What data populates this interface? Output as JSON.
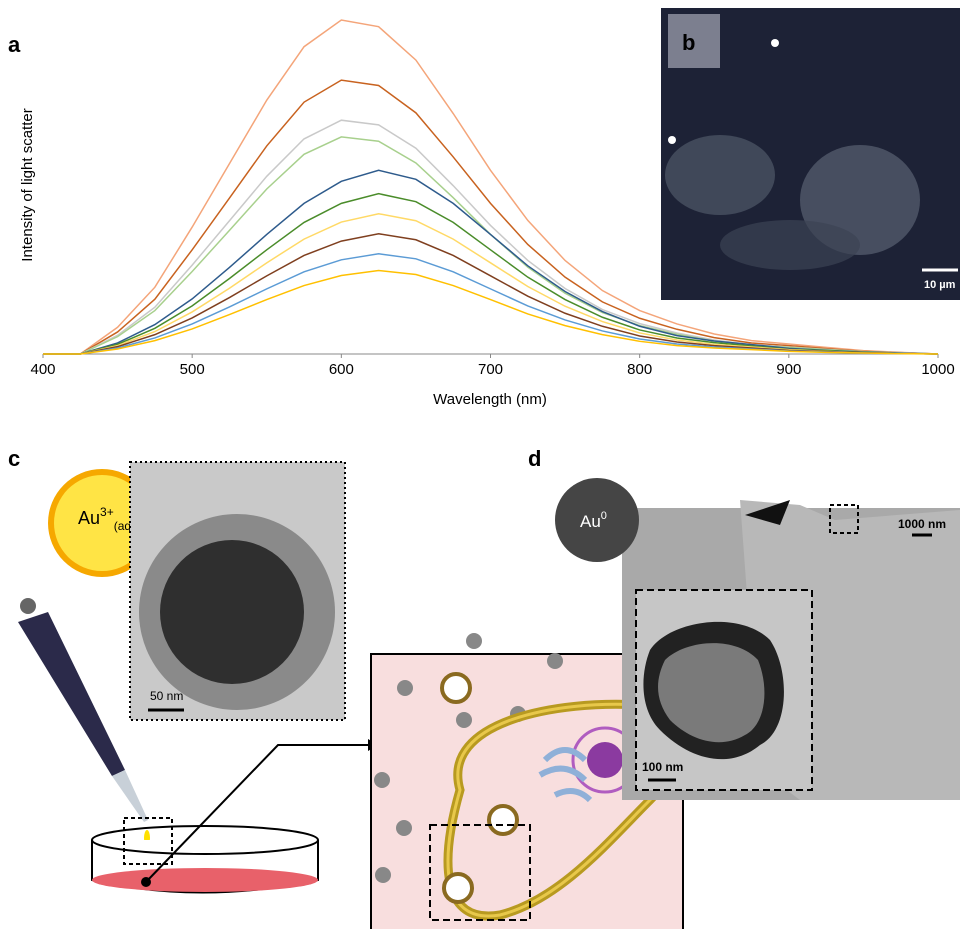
{
  "chart_data": {
    "type": "line",
    "xlabel": "Wavelength (nm)",
    "ylabel": "Intensity of light scatter",
    "x": [
      400,
      425,
      450,
      475,
      500,
      525,
      550,
      575,
      600,
      625,
      650,
      675,
      700,
      725,
      750,
      775,
      800,
      825,
      850,
      875,
      900,
      925,
      950,
      975,
      1000
    ],
    "xlim": [
      400,
      1000
    ],
    "xticks": [
      400,
      500,
      600,
      700,
      800,
      900,
      1000
    ],
    "ylim": [
      0,
      100
    ],
    "series": [
      {
        "color": "#f4a57a",
        "values": [
          0,
          0,
          8,
          20,
          38,
          57,
          76,
          92,
          100,
          98,
          88,
          72,
          55,
          40,
          28,
          19,
          13,
          9,
          6,
          4,
          3,
          2,
          1,
          0.5,
          0
        ]
      },
      {
        "color": "#c8621f",
        "values": [
          0,
          0,
          6.6,
          16.4,
          31.2,
          46.7,
          62.3,
          75.4,
          82,
          80.4,
          72.2,
          59,
          45.1,
          32.8,
          23,
          15.6,
          10.7,
          7.4,
          4.9,
          3.3,
          2.5,
          1.6,
          0.8,
          0.4,
          0
        ]
      },
      {
        "color": "#c9c9c9",
        "values": [
          0,
          0,
          5.6,
          14,
          26.6,
          39.9,
          53.2,
          64.4,
          70,
          68.6,
          61.6,
          50.4,
          38.5,
          28,
          19.6,
          13.3,
          9.1,
          6.3,
          4.2,
          2.8,
          2.1,
          1.4,
          0.7,
          0.4,
          0
        ]
      },
      {
        "color": "#a8d08d",
        "values": [
          0,
          0,
          5.2,
          13,
          24.7,
          37,
          49.4,
          59.8,
          65,
          63.7,
          57.2,
          46.8,
          35.8,
          26,
          18.2,
          12.4,
          8.5,
          5.9,
          3.9,
          2.6,
          2,
          1.3,
          0.7,
          0.3,
          0
        ]
      },
      {
        "color": "#2e5b8c",
        "values": [
          0,
          0,
          3.3,
          8.8,
          16.5,
          25.9,
          35.8,
          45.1,
          51.7,
          55,
          52.3,
          45.1,
          35.8,
          26.4,
          18.7,
          12.7,
          8.3,
          5.5,
          3.9,
          2.8,
          1.7,
          1.1,
          0.6,
          0.3,
          0
        ]
      },
      {
        "color": "#4a8c2a",
        "values": [
          0,
          0,
          2.9,
          7.7,
          14.4,
          22.6,
          31.2,
          39.4,
          45.1,
          48,
          45.6,
          39.4,
          31.2,
          23,
          16.3,
          11,
          7.2,
          4.8,
          3.4,
          2.4,
          1.4,
          1,
          0.5,
          0.2,
          0
        ]
      },
      {
        "color": "#ffd966",
        "values": [
          0,
          0,
          2.5,
          6.7,
          12.6,
          19.7,
          27.3,
          34.4,
          39.5,
          42,
          39.9,
          34.4,
          27.3,
          20.2,
          14.3,
          9.7,
          6.3,
          4.2,
          2.9,
          2.1,
          1.3,
          0.8,
          0.4,
          0.2,
          0
        ]
      },
      {
        "color": "#7f3f1f",
        "values": [
          0,
          0,
          2.2,
          5.8,
          10.8,
          16.9,
          23.4,
          29.5,
          33.8,
          36,
          34.2,
          29.5,
          23.4,
          17.3,
          12.2,
          8.3,
          5.4,
          3.6,
          2.5,
          1.8,
          1.1,
          0.7,
          0.4,
          0.2,
          0
        ]
      },
      {
        "color": "#5b9bd5",
        "values": [
          0,
          0,
          1.8,
          4.8,
          9,
          14.1,
          19.5,
          24.6,
          28.2,
          30,
          28.5,
          24.6,
          19.5,
          14.4,
          10.2,
          6.9,
          4.5,
          3,
          2.1,
          1.5,
          0.9,
          0.6,
          0.3,
          0.2,
          0
        ]
      },
      {
        "color": "#ffc000",
        "values": [
          0,
          0,
          1.5,
          4,
          7.5,
          11.8,
          16.3,
          20.5,
          23.5,
          25,
          23.8,
          20.5,
          16.3,
          12,
          8.5,
          5.8,
          3.8,
          2.5,
          1.8,
          1.3,
          0.8,
          0.5,
          0.3,
          0.1,
          0
        ]
      }
    ]
  },
  "panel_labels": [
    "a",
    "b",
    "c",
    "d"
  ],
  "panel_b": {
    "scale_bar": "10 µm"
  },
  "panel_c": {
    "ion": {
      "symbol": "Au",
      "charge": "3+",
      "state": "(aq)"
    },
    "scale_bar": "50 nm"
  },
  "panel_d": {
    "particle": {
      "symbol": "Au",
      "charge": "0"
    },
    "scale_bars": [
      "1000 nm",
      "100 nm"
    ]
  }
}
